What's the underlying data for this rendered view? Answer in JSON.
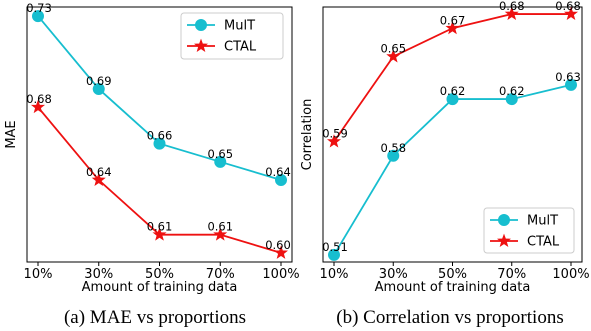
{
  "captions": [
    "(a) MAE vs proportions",
    "(b) Correlation vs proportions"
  ],
  "colors": {
    "MulT": "#17becf",
    "CTAL": "#ee1111"
  },
  "chart_data": [
    {
      "type": "line",
      "categories": [
        "10%",
        "30%",
        "50%",
        "70%",
        "100%"
      ],
      "xlabel": "Amount of training data",
      "ylabel": "MAE",
      "ylim": [
        0.595,
        0.735
      ],
      "grid": false,
      "legend": "top-right",
      "series": [
        {
          "name": "MulT",
          "marker": "circle",
          "color": "#17becf",
          "values": [
            0.73,
            0.69,
            0.66,
            0.65,
            0.64
          ],
          "labels": [
            "0.73",
            "0.69",
            "0.66",
            "0.65",
            "0.64"
          ]
        },
        {
          "name": "CTAL",
          "marker": "star",
          "color": "#ee1111",
          "values": [
            0.68,
            0.64,
            0.61,
            0.61,
            0.6
          ],
          "labels": [
            "0.68",
            "0.64",
            "0.61",
            "0.61",
            "0.60"
          ]
        }
      ]
    },
    {
      "type": "line",
      "categories": [
        "10%",
        "30%",
        "50%",
        "70%",
        "100%"
      ],
      "xlabel": "Amount of training data",
      "ylabel": "Correlation",
      "ylim": [
        0.505,
        0.685
      ],
      "grid": false,
      "legend": "bottom-right",
      "series": [
        {
          "name": "MulT",
          "marker": "circle",
          "color": "#17becf",
          "values": [
            0.51,
            0.58,
            0.62,
            0.62,
            0.63
          ],
          "labels": [
            "0.51",
            "0.58",
            "0.62",
            "0.62",
            "0.63"
          ]
        },
        {
          "name": "CTAL",
          "marker": "star",
          "color": "#ee1111",
          "values": [
            0.59,
            0.65,
            0.67,
            0.68,
            0.68
          ],
          "labels": [
            "0.59",
            "0.65",
            "0.67",
            "0.68",
            "0.68"
          ]
        }
      ]
    }
  ]
}
